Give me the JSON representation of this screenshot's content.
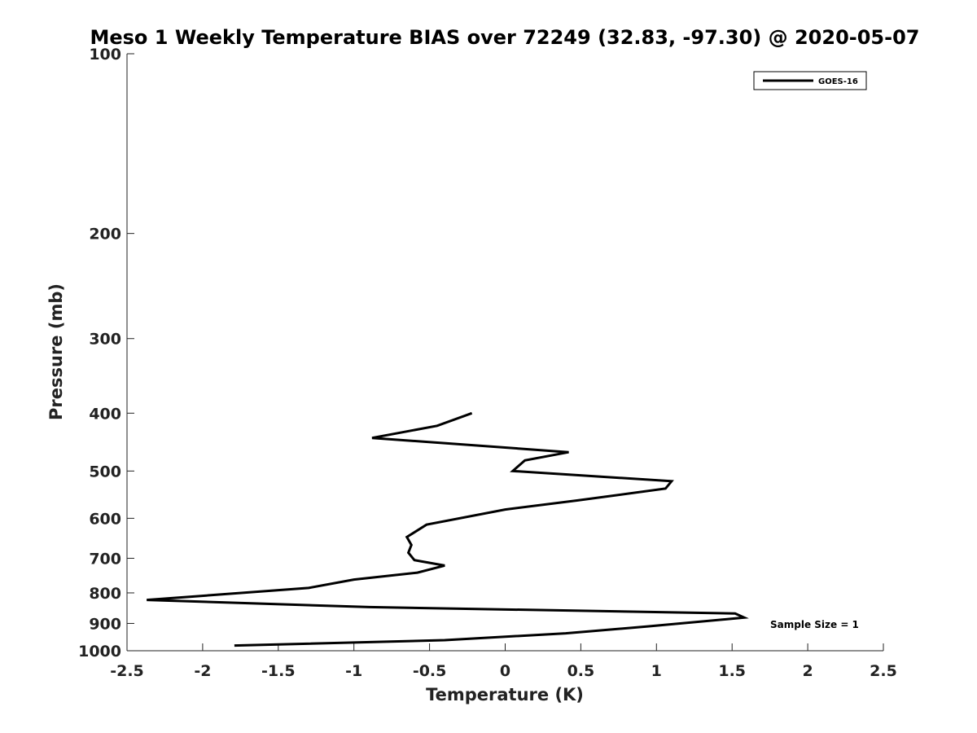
{
  "chart_data": {
    "type": "line",
    "title": "Meso 1 Weekly Temperature BIAS over 72249 (32.83, -97.30) @ 2020-05-07",
    "xlabel": "Temperature (K)",
    "ylabel": "Pressure (mb)",
    "xlim": [
      -2.5,
      2.5
    ],
    "ylim": [
      100,
      1000
    ],
    "yscale": "log",
    "y_reversed": true,
    "grid": false,
    "legend_position": "top-right",
    "xticks": [
      -2.5,
      -2,
      -1.5,
      -1,
      -0.5,
      0,
      0.5,
      1,
      1.5,
      2,
      2.5
    ],
    "xtick_labels": [
      "-2.5",
      "-2",
      "-1.5",
      "-1",
      "-0.5",
      "0",
      "0.5",
      "1",
      "1.5",
      "2",
      "2.5"
    ],
    "yticks": [
      100,
      200,
      300,
      400,
      500,
      600,
      700,
      800,
      900,
      1000
    ],
    "ytick_labels": [
      "100",
      "200",
      "300",
      "400",
      "500",
      "600",
      "700",
      "800",
      "900",
      "1000"
    ],
    "series": [
      {
        "name": "GOES-16",
        "color": "#000000",
        "x": [
          -0.22,
          -0.45,
          -0.88,
          0.42,
          0.13,
          0.05,
          1.1,
          1.06,
          0.48,
          0.0,
          -0.52,
          -0.65,
          -0.62,
          -0.64,
          -0.6,
          -0.4,
          -0.58,
          -1.0,
          -1.3,
          -2.37,
          -0.9,
          1.52,
          1.58,
          0.95,
          0.4,
          -0.4,
          -1.79
        ],
        "y": [
          400,
          420,
          440,
          465,
          480,
          500,
          520,
          535,
          560,
          580,
          615,
          645,
          665,
          685,
          705,
          720,
          740,
          760,
          785,
          822,
          845,
          866,
          880,
          910,
          935,
          960,
          980
        ]
      }
    ],
    "annotations": [
      "Sample Size = 1"
    ]
  }
}
